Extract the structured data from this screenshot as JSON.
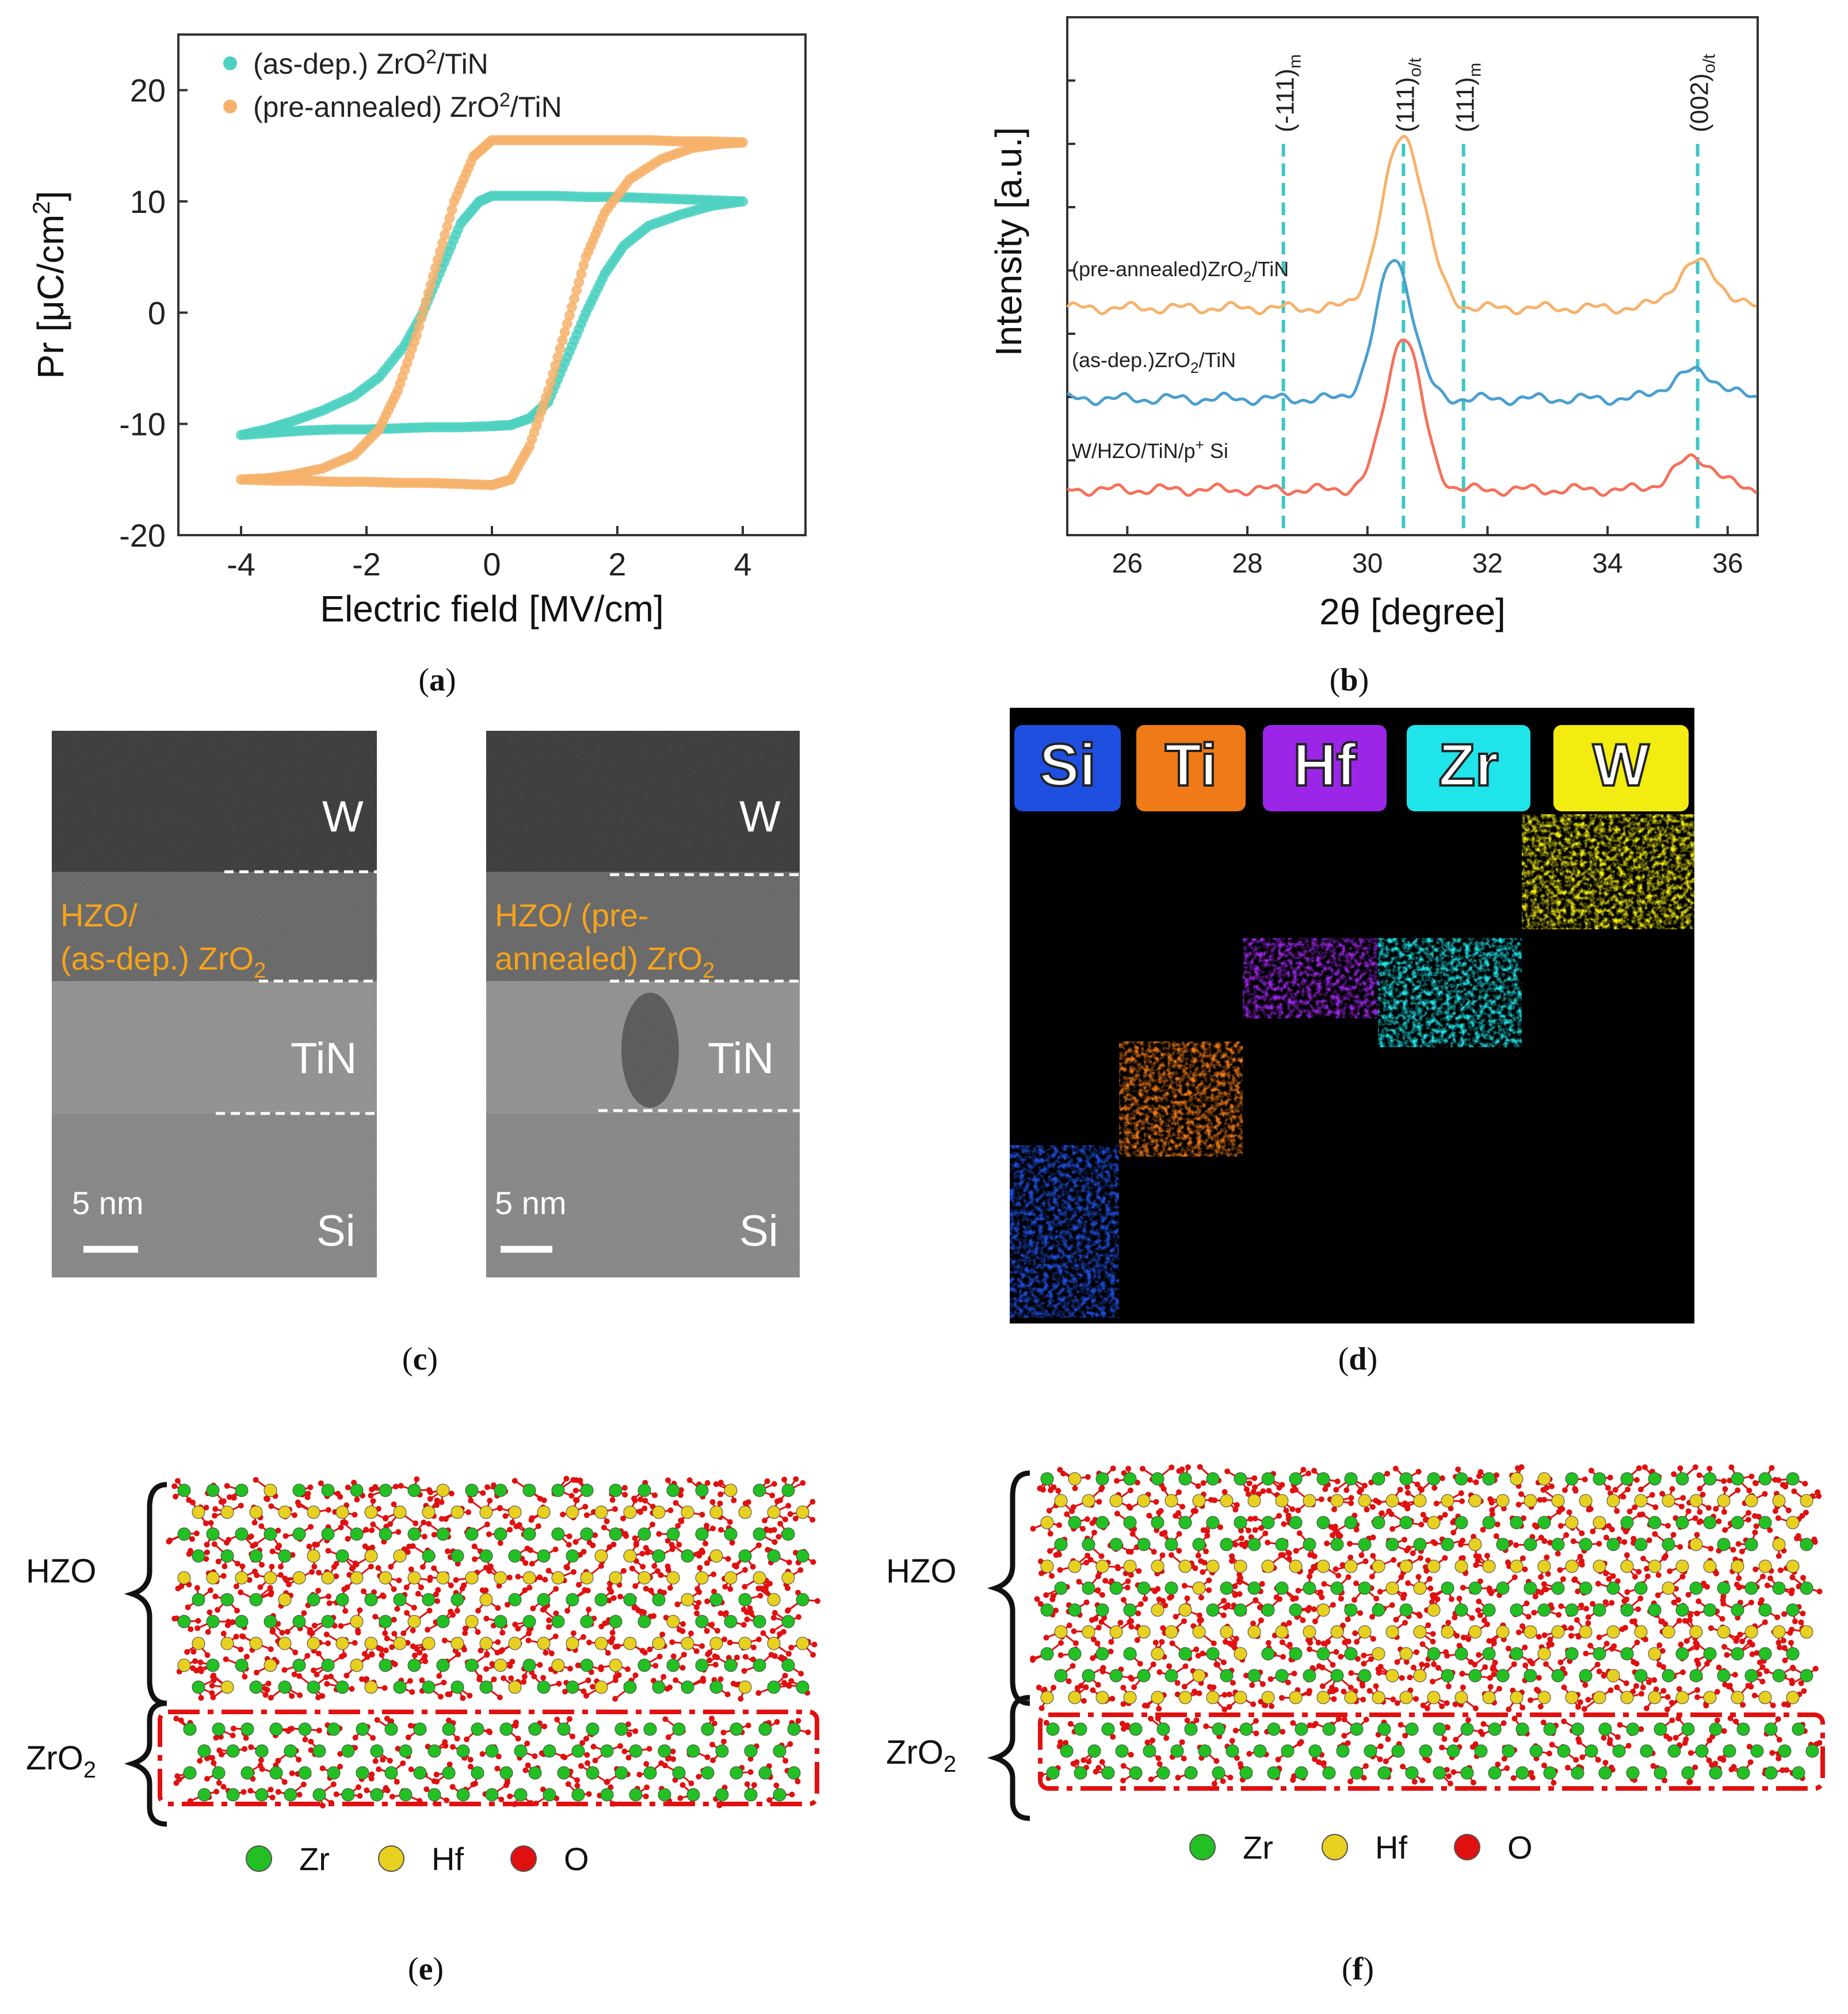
{
  "captions": {
    "a": "a",
    "b": "b",
    "c": "c",
    "d": "d",
    "e": "e",
    "f": "f"
  },
  "chart_data": [
    {
      "type": "scatter",
      "panel": "a",
      "xlabel": "Electric field [MV/cm]",
      "ylabel": "Pr [μC/cm²]",
      "xlim": [
        -5,
        5
      ],
      "ylim": [
        -20,
        25
      ],
      "xticks": [
        -4,
        -2,
        0,
        2,
        4
      ],
      "yticks": [
        -20,
        -10,
        0,
        10,
        20
      ],
      "legend_position": "top-left",
      "series": [
        {
          "name": "(as-dep.) ZrO2/TiN",
          "color": "#4fd1c1",
          "points": [
            [
              -4,
              -11
            ],
            [
              -3.5,
              -10.8
            ],
            [
              -3,
              -10.6
            ],
            [
              -2.5,
              -10.5
            ],
            [
              -2,
              -10.5
            ],
            [
              -1.5,
              -10.4
            ],
            [
              -1,
              -10.3
            ],
            [
              -0.5,
              -10.3
            ],
            [
              0,
              -10.2
            ],
            [
              0.3,
              -10.1
            ],
            [
              0.6,
              -9.5
            ],
            [
              0.9,
              -8
            ],
            [
              1.2,
              -4
            ],
            [
              1.5,
              0
            ],
            [
              1.8,
              3.5
            ],
            [
              2.1,
              6
            ],
            [
              2.5,
              7.8
            ],
            [
              3,
              8.8
            ],
            [
              3.5,
              9.6
            ],
            [
              4,
              10
            ],
            [
              3.5,
              10.1
            ],
            [
              3,
              10.2
            ],
            [
              2.5,
              10.3
            ],
            [
              2,
              10.4
            ],
            [
              1.5,
              10.4
            ],
            [
              1,
              10.5
            ],
            [
              0.5,
              10.5
            ],
            [
              0,
              10.5
            ],
            [
              -0.2,
              10
            ],
            [
              -0.5,
              8
            ],
            [
              -0.8,
              4
            ],
            [
              -1.1,
              0
            ],
            [
              -1.4,
              -3
            ],
            [
              -1.8,
              -5.8
            ],
            [
              -2.2,
              -7.5
            ],
            [
              -2.7,
              -8.8
            ],
            [
              -3.2,
              -9.8
            ],
            [
              -3.6,
              -10.5
            ],
            [
              -4,
              -11
            ]
          ]
        },
        {
          "name": "(pre-annealed) ZrO2/TiN",
          "color": "#f6b26b",
          "points": [
            [
              -4,
              -15
            ],
            [
              -3.5,
              -15.1
            ],
            [
              -3,
              -15.1
            ],
            [
              -2.5,
              -15.2
            ],
            [
              -2,
              -15.2
            ],
            [
              -1.5,
              -15.3
            ],
            [
              -1,
              -15.3
            ],
            [
              -0.5,
              -15.4
            ],
            [
              0,
              -15.5
            ],
            [
              0.3,
              -15
            ],
            [
              0.6,
              -12
            ],
            [
              0.9,
              -7
            ],
            [
              1.2,
              -1
            ],
            [
              1.5,
              5
            ],
            [
              1.8,
              9
            ],
            [
              2.2,
              12
            ],
            [
              2.7,
              13.8
            ],
            [
              3.2,
              14.8
            ],
            [
              3.7,
              15.2
            ],
            [
              4,
              15.3
            ],
            [
              3.5,
              15.4
            ],
            [
              3,
              15.4
            ],
            [
              2.5,
              15.5
            ],
            [
              2,
              15.5
            ],
            [
              1.5,
              15.5
            ],
            [
              1,
              15.5
            ],
            [
              0.5,
              15.5
            ],
            [
              0,
              15.5
            ],
            [
              -0.3,
              14
            ],
            [
              -0.6,
              10
            ],
            [
              -0.9,
              4
            ],
            [
              -1.2,
              -2
            ],
            [
              -1.5,
              -7
            ],
            [
              -1.8,
              -10.5
            ],
            [
              -2.2,
              -12.8
            ],
            [
              -2.7,
              -14
            ],
            [
              -3.2,
              -14.6
            ],
            [
              -3.6,
              -14.9
            ],
            [
              -4,
              -15
            ]
          ]
        }
      ]
    },
    {
      "type": "line",
      "panel": "b",
      "xlabel": "2θ [degree]",
      "ylabel": "Intensity [a.u.]",
      "xlim": [
        25,
        36.5
      ],
      "xticks": [
        26,
        28,
        30,
        32,
        34,
        36
      ],
      "ref_lines": [
        {
          "x": 28.6,
          "label": "(-111)",
          "sub": "m"
        },
        {
          "x": 30.6,
          "label": "(111)",
          "sub": "o/t"
        },
        {
          "x": 31.6,
          "label": "(111)",
          "sub": "m"
        },
        {
          "x": 35.5,
          "label": "(002)",
          "sub": "o/t"
        }
      ],
      "series": [
        {
          "name": "(pre-annealed)ZrO2/TiN",
          "color": "#f6b26b",
          "offset": 2.0,
          "peaks": [
            [
              30.6,
              1.9,
              0.35
            ],
            [
              35.5,
              0.5,
              0.35
            ]
          ]
        },
        {
          "name": "(as-dep.)ZrO2/TiN",
          "color": "#4a9fd0",
          "offset": 1.0,
          "peaks": [
            [
              30.45,
              1.55,
              0.3
            ],
            [
              35.45,
              0.3,
              0.4
            ]
          ]
        },
        {
          "name": "W/HZO/TiN/p+ Si",
          "color": "#f4715a",
          "offset": 0.0,
          "peaks": [
            [
              30.6,
              1.7,
              0.3
            ],
            [
              35.45,
              0.35,
              0.35
            ]
          ]
        }
      ]
    }
  ],
  "tem": {
    "left": {
      "w": "W",
      "hzo_line1": "HZO/",
      "hzo_line2": "(as-dep.) ZrO",
      "hzo_sub": "2",
      "tin": "TiN",
      "si": "Si",
      "scale": "5 nm"
    },
    "right": {
      "w": "W",
      "hzo_line1": "HZO/ (pre-",
      "hzo_line2": "annealed) ZrO",
      "hzo_sub": "2",
      "tin": "TiN",
      "si": "Si",
      "scale": "5 nm"
    }
  },
  "eds": {
    "elements": [
      {
        "label": "Si",
        "color": "#1f4fe0"
      },
      {
        "label": "Ti",
        "color": "#f07a18"
      },
      {
        "label": "Hf",
        "color": "#9b26e8"
      },
      {
        "label": "Zr",
        "color": "#1fe4ea"
      },
      {
        "label": "W",
        "color": "#f2ec10"
      }
    ]
  },
  "structure": {
    "e": {
      "top_label": "HZO",
      "bottom_label": "ZrO",
      "bottom_sub": "2"
    },
    "f": {
      "top_label": "HZO",
      "bottom_label": "ZrO",
      "bottom_sub": "2"
    },
    "legend": [
      {
        "label": "Zr",
        "color": "#22c022"
      },
      {
        "label": "Hf",
        "color": "#e8d020"
      },
      {
        "label": "O",
        "color": "#e01010"
      }
    ]
  }
}
